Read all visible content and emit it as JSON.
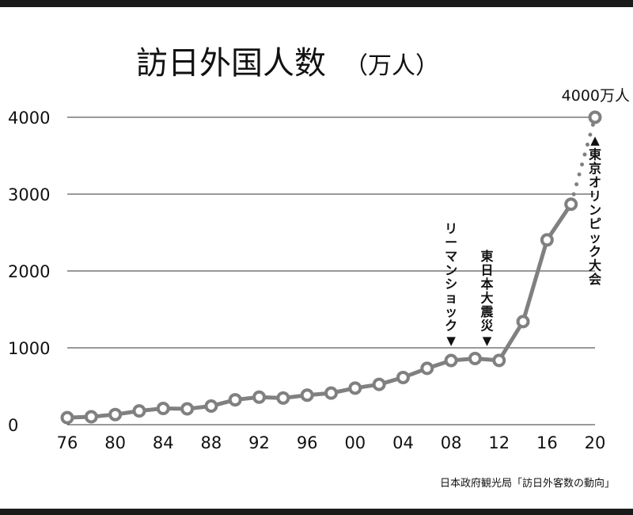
{
  "chart_data": {
    "type": "line",
    "title": "訪日外国人数",
    "title_unit": "（万人）",
    "source": "日本政府観光局「訪日外客数の動向」",
    "x": [
      1976,
      1978,
      1980,
      1982,
      1984,
      1986,
      1988,
      1990,
      1992,
      1994,
      1996,
      1998,
      2000,
      2002,
      2004,
      2006,
      2008,
      2010,
      2012,
      2014,
      2016,
      2018
    ],
    "values": [
      91,
      103,
      132,
      179,
      211,
      206,
      242,
      324,
      358,
      347,
      384,
      411,
      476,
      524,
      614,
      733,
      835,
      861,
      836,
      1341,
      2404,
      2869
    ],
    "target": {
      "x": 2020,
      "value": 4000,
      "label": "4000万人"
    },
    "xlim": [
      1976,
      2020
    ],
    "ylim": [
      0,
      4000
    ],
    "y_ticks": [
      0,
      1000,
      2000,
      3000,
      4000
    ],
    "y_tick_labels": [
      "0",
      "1000",
      "2000",
      "3000",
      "4000"
    ],
    "x_ticks": [
      1976,
      1980,
      1984,
      1988,
      1992,
      1996,
      2000,
      2004,
      2008,
      2012,
      2016,
      2020
    ],
    "x_tick_labels": [
      "76",
      "80",
      "84",
      "88",
      "92",
      "96",
      "00",
      "04",
      "08",
      "12",
      "16",
      "20"
    ],
    "grid": true,
    "annotations": [
      {
        "name": "lehman-shock",
        "x": 2008,
        "text": "リーマンショック",
        "arrow": "▼"
      },
      {
        "name": "great-east-japan-earthquake",
        "x": 2011,
        "text": "東日本大震災",
        "arrow": "▼"
      },
      {
        "name": "tokyo-olympics",
        "x": 2020,
        "text": "東京オリンピック大会",
        "arrow": "▲"
      }
    ],
    "colors": {
      "line": "#808080",
      "marker_fill": "#ffffff",
      "grid": "#333333",
      "text": "#111111",
      "bar": "#1a1a1a"
    }
  }
}
